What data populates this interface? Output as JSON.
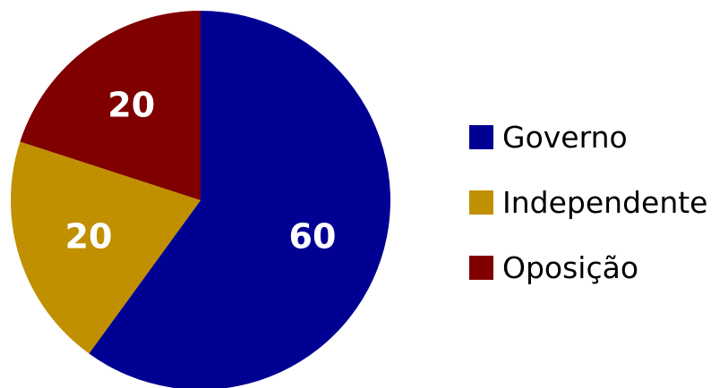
{
  "chart_data": {
    "type": "pie",
    "title": "",
    "categories": [
      "Governo",
      "Independente",
      "Oposição"
    ],
    "values": [
      60,
      20,
      20
    ],
    "data_labels": [
      "60",
      "20",
      "20"
    ],
    "colors": [
      "#000092",
      "#C09000",
      "#800000"
    ],
    "start": "top (12 o'clock)",
    "direction": "clockwise",
    "legend": {
      "position": "right",
      "entries": [
        {
          "label": "Governo",
          "color": "#000092"
        },
        {
          "label": "Independente",
          "color": "#C09000"
        },
        {
          "label": "Oposição",
          "color": "#800000"
        }
      ]
    }
  }
}
